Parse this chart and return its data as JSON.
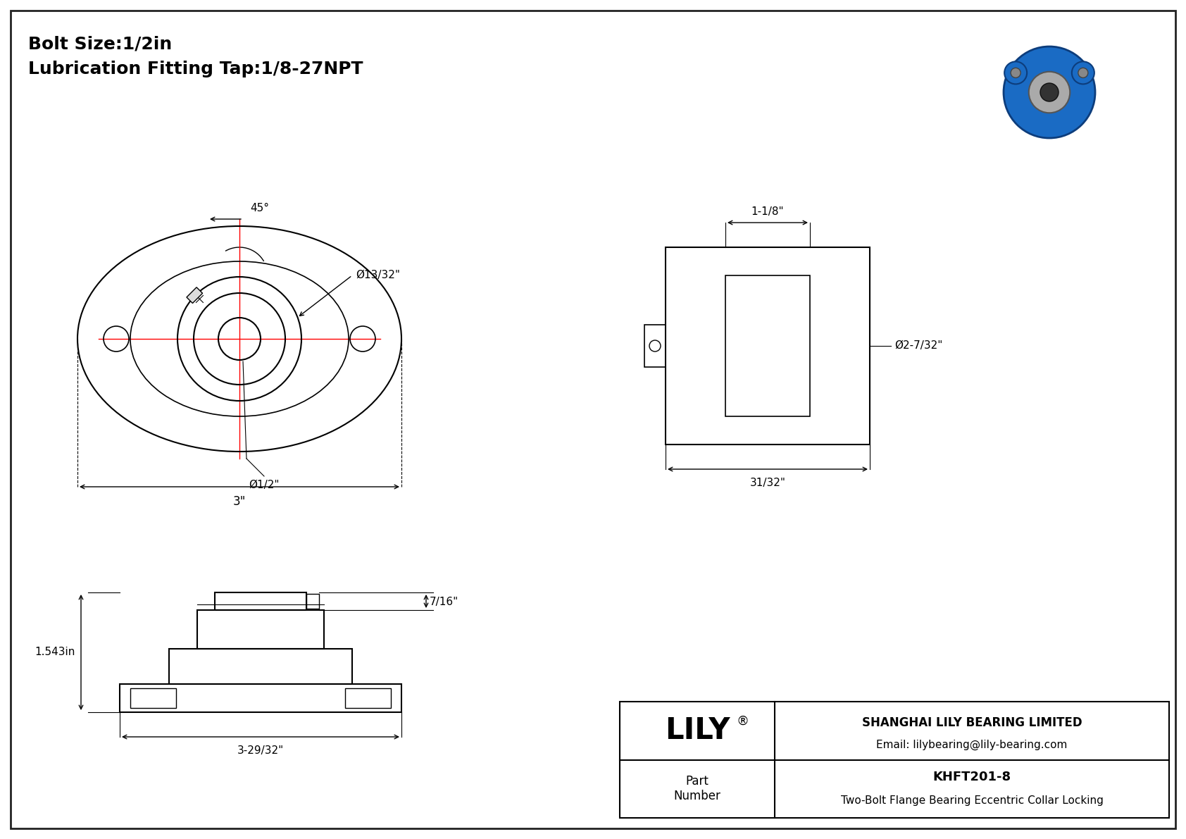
{
  "bg_color": "#ffffff",
  "line_color": "#000000",
  "red_color": "#ff0000",
  "title_line1": "Bolt Size:1/2in",
  "title_line2": "Lubrication Fitting Tap:1/8-27NPT",
  "dim_45": "45°",
  "dim_dia_13_32": "Ø13/32\"",
  "dim_dia_1_2": "Ø1/2\"",
  "dim_3": "3\"",
  "dim_1_1_8": "1-1/8\"",
  "dim_dia_2_7_32": "Ø2-7/32\"",
  "dim_31_32": "31/32\"",
  "dim_1_543": "1.543in",
  "dim_7_16": "7/16\"",
  "dim_3_29_32": "3-29/32\"",
  "lily_text": "LILY®",
  "company": "SHANGHAI LILY BEARING LIMITED",
  "email": "Email: lilybearing@lily-bearing.com",
  "part_label": "Part\nNumber",
  "part_number": "KHFT201-8",
  "part_desc": "Two-Bolt Flange Bearing Eccentric Collar Locking",
  "border_color": "#333333",
  "gray_color": "#888888"
}
